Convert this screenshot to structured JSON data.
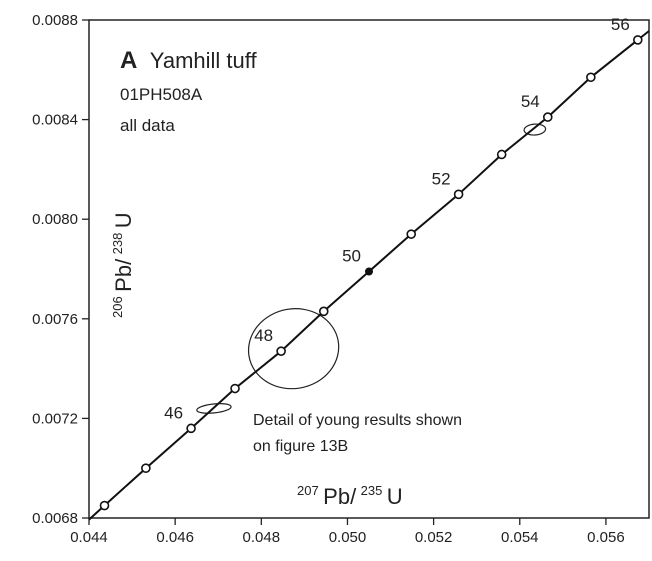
{
  "chart_data": {
    "type": "scatter",
    "panel_letter": "A",
    "title": "Yamhill tuff",
    "sample": "01PH508A",
    "subset": "all data",
    "xlabel": {
      "sup": "207",
      "base": "Pb/",
      "sup2": "235",
      "end": "U"
    },
    "ylabel": {
      "sup": "206",
      "base": "Pb/",
      "sup2": "238",
      "end": "U"
    },
    "xlim": [
      0.044,
      0.057
    ],
    "ylim": [
      0.0068,
      0.0088
    ],
    "xticks": [
      "0.044",
      "0.046",
      "0.048",
      "0.050",
      "0.052",
      "0.054",
      "0.056"
    ],
    "yticks": [
      "0.0068",
      "0.0072",
      "0.0076",
      "0.0080",
      "0.0084",
      "0.0088"
    ],
    "concordia": {
      "ages_ma": [
        44,
        45,
        46,
        47,
        48,
        49,
        50,
        51,
        52,
        53,
        54,
        55,
        56
      ],
      "x": [
        0.04436,
        0.04532,
        0.04637,
        0.04739,
        0.04846,
        0.04945,
        0.0505,
        0.05148,
        0.05258,
        0.05358,
        0.05465,
        0.05565,
        0.05674
      ],
      "y": [
        0.00685,
        0.007,
        0.00716,
        0.00732,
        0.00747,
        0.00763,
        0.00779,
        0.00794,
        0.0081,
        0.00826,
        0.00841,
        0.00857,
        0.00872
      ],
      "filled_age": 50,
      "labeled_ages": [
        "46",
        "48",
        "50",
        "52",
        "54",
        "56"
      ]
    },
    "ellipses": [
      {
        "cx": 0.0469,
        "cy": 0.00724,
        "rx": 0.0004,
        "ry": 1.8e-05,
        "angle_deg": -6
      },
      {
        "cx": 0.04875,
        "cy": 0.00748,
        "rx": 0.00105,
        "ry": 0.00016,
        "angle_deg": -10
      },
      {
        "cx": 0.05435,
        "cy": 0.00836,
        "rx": 0.00025,
        "ry": 2.2e-05,
        "angle_deg": -4
      }
    ],
    "annotation": [
      "Detail of young results shown",
      "on figure 13B"
    ]
  }
}
